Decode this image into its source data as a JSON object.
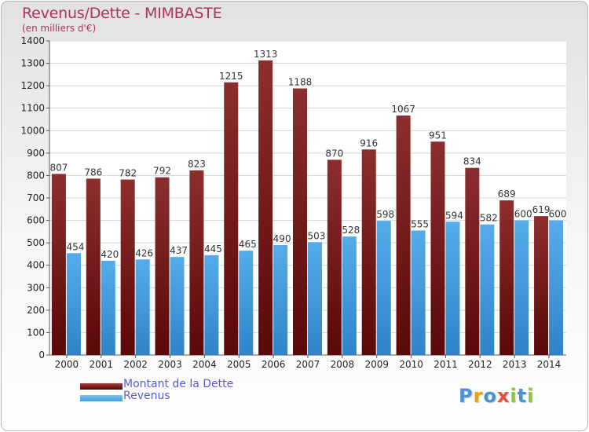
{
  "header": {
    "title": "Revenus/Dette - MIMBASTE",
    "subtitle": "(en milliers d'€)"
  },
  "logo": {
    "text": "Proxiti"
  },
  "colors": {
    "dette": "#7a1c1c",
    "revenus": "#3e9ee2",
    "grid": "#d4d4d4",
    "axis_text": "#222222",
    "title": "#b03060"
  },
  "chart_data": {
    "type": "bar",
    "title": "Revenus/Dette - MIMBASTE",
    "subtitle": "(en milliers d'€)",
    "categories": [
      "2000",
      "2001",
      "2002",
      "2003",
      "2004",
      "2005",
      "2006",
      "2007",
      "2008",
      "2009",
      "2010",
      "2011",
      "2012",
      "2013",
      "2014"
    ],
    "series": [
      {
        "name": "Montant de la Dette",
        "values": [
          807,
          786,
          782,
          792,
          823,
          1215,
          1313,
          1188,
          870,
          916,
          1067,
          951,
          834,
          689,
          619
        ]
      },
      {
        "name": "Revenus",
        "values": [
          454,
          420,
          426,
          437,
          445,
          465,
          490,
          503,
          528,
          598,
          555,
          594,
          582,
          600,
          600
        ]
      }
    ],
    "ylim": [
      0,
      1400
    ],
    "yticks": [
      0,
      100,
      200,
      300,
      400,
      500,
      600,
      700,
      800,
      900,
      1000,
      1100,
      1200,
      1300,
      1400
    ],
    "grid": true,
    "legend_position": "bottom-left"
  }
}
